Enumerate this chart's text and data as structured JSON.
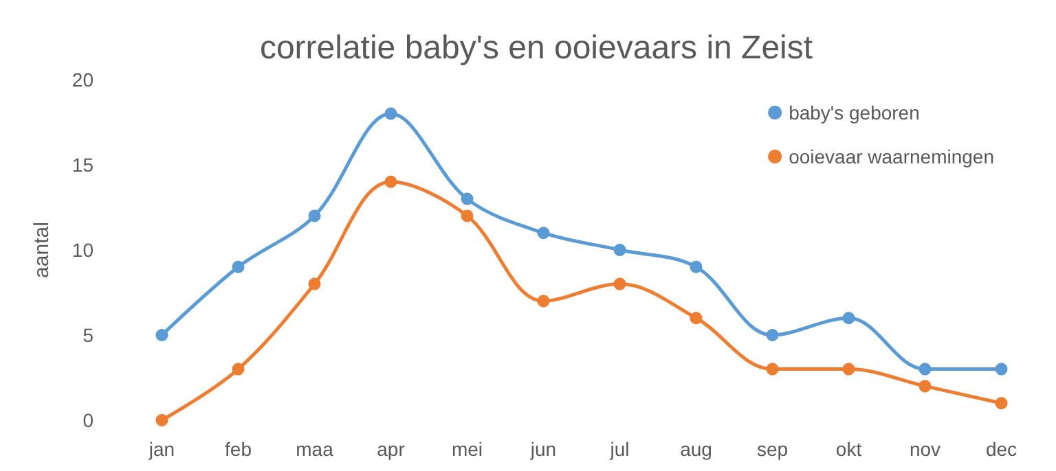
{
  "chart_data": {
    "type": "line",
    "title": "correlatie baby's en ooievaars in Zeist",
    "ylabel": "aantal",
    "categories": [
      "jan",
      "feb",
      "maa",
      "apr",
      "mei",
      "jun",
      "jul",
      "aug",
      "sep",
      "okt",
      "nov",
      "dec"
    ],
    "series": [
      {
        "name": "baby's geboren",
        "color": "#5b9bd5",
        "values": [
          5,
          9,
          12,
          18,
          13,
          11,
          10,
          9,
          5,
          6,
          3,
          3
        ]
      },
      {
        "name": "ooievaar waarnemingen",
        "color": "#ed7d31",
        "values": [
          0,
          3,
          8,
          14,
          12,
          7,
          8,
          6,
          3,
          3,
          2,
          1
        ]
      }
    ],
    "ylim": [
      0,
      20
    ],
    "yticks": [
      0,
      5,
      10,
      15,
      20
    ],
    "grid": false,
    "legend": "top right",
    "marker": "circle",
    "line_style": "solid"
  }
}
